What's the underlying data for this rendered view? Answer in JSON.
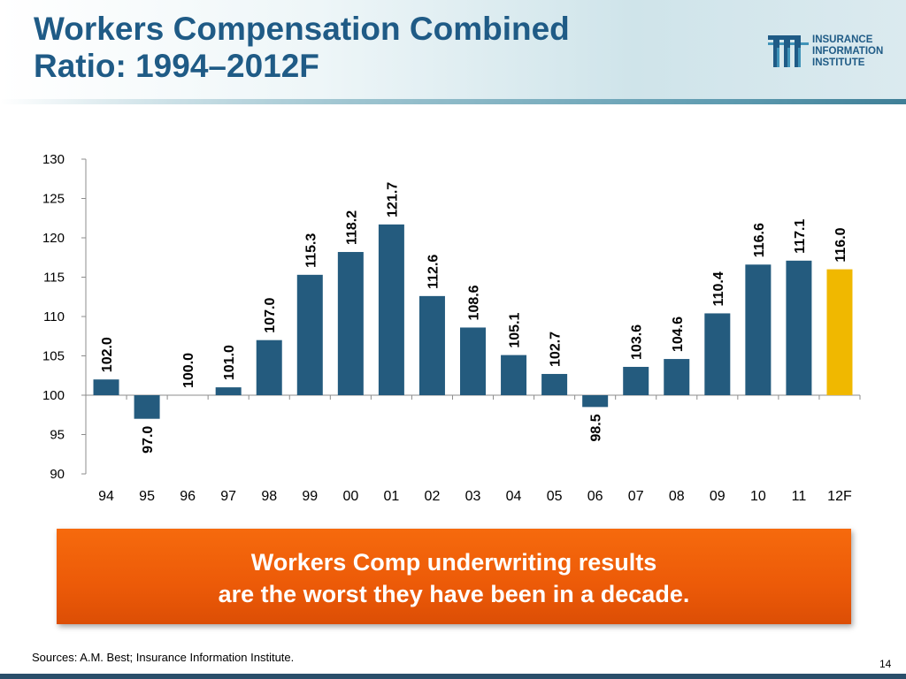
{
  "slide": {
    "title_line1": "Workers Compensation Combined",
    "title_line2": "Ratio: 1994–2012F",
    "logo_lines": [
      "INSURANCE",
      "INFORMATION",
      "INSTITUTE"
    ],
    "callout_line1": "Workers Comp underwriting results",
    "callout_line2": "are the worst they have been in a decade.",
    "source": "Sources: A.M. Best; Insurance Information Institute.",
    "page_number": "14"
  },
  "colors": {
    "bar": "#245b7e",
    "bar_forecast": "#f0b800",
    "title": "#1f5b86",
    "callout": "#ee5c08"
  },
  "chart_data": {
    "type": "bar",
    "categories": [
      "94",
      "95",
      "96",
      "97",
      "98",
      "99",
      "00",
      "01",
      "02",
      "03",
      "04",
      "05",
      "06",
      "07",
      "08",
      "09",
      "10",
      "11",
      "12F"
    ],
    "values": [
      102.0,
      97.0,
      100.0,
      101.0,
      107.0,
      115.3,
      118.2,
      121.7,
      112.6,
      108.6,
      105.1,
      102.7,
      98.5,
      103.6,
      104.6,
      110.4,
      116.6,
      117.1,
      116.0
    ],
    "labels": [
      "102.0",
      "97.0",
      "100.0",
      "101.0",
      "107.0",
      "115.3",
      "118.2",
      "121.7",
      "112.6",
      "108.6",
      "105.1",
      "102.7",
      "98.5",
      "103.6",
      "104.6",
      "110.4",
      "116.6",
      "117.1",
      "116.0"
    ],
    "baseline": 100,
    "ylim": [
      90,
      130
    ],
    "yticks": [
      90,
      95,
      100,
      105,
      110,
      115,
      120,
      125,
      130
    ],
    "forecast_index": 18,
    "grid": false,
    "title": "",
    "xlabel": "",
    "ylabel": ""
  }
}
